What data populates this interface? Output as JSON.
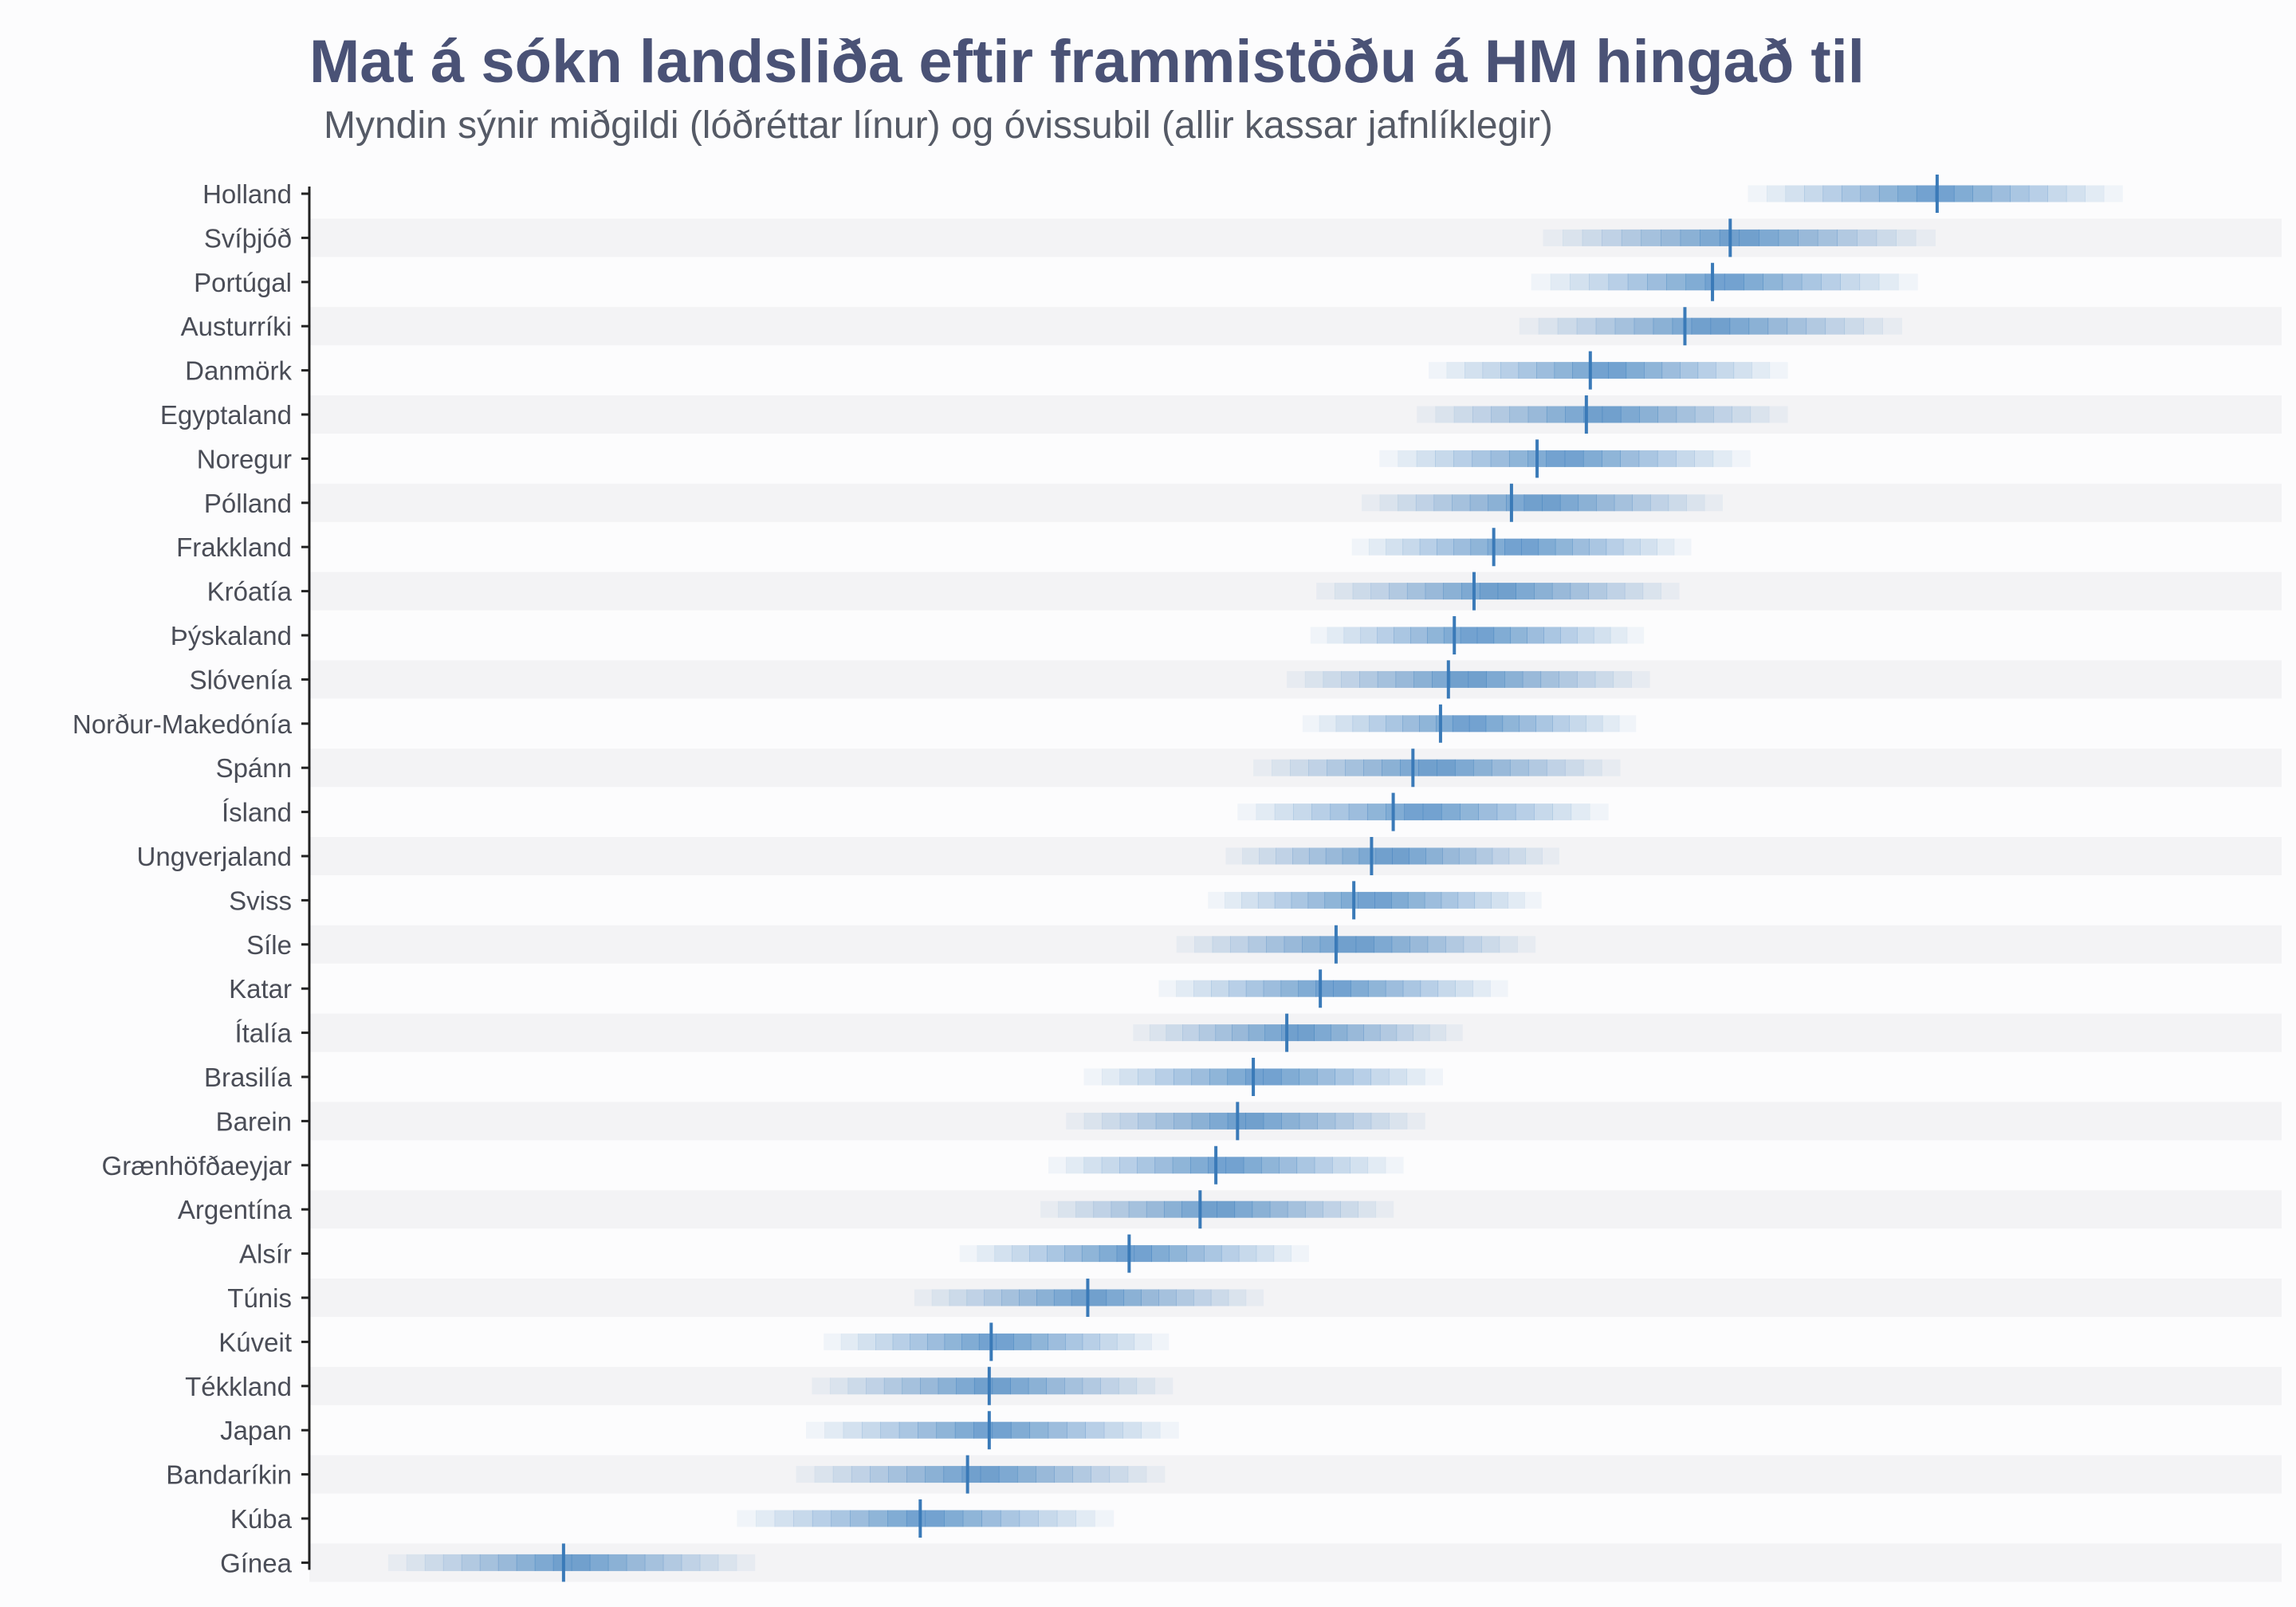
{
  "title": "Mat á sókn landsliða eftir frammistöðu á HM hingað til",
  "subtitle": "Myndin sýnir miðgildi (lóðréttar línur) og óvissubil (allir kassar jafnlíklegir)",
  "colors": {
    "band": "#3c7ebd",
    "median": "#3a7ab8",
    "stripe": "#f3f3f5",
    "axis": "#222222"
  },
  "chart_data": {
    "type": "interval-strip",
    "title": "Mat á sókn landsliða eftir frammistöðu á HM hingað til",
    "subtitle": "Myndin sýnir miðgildi (lóðréttar línur) og óvissubil (allir kassar jafnlíklegir)",
    "xlabel": "",
    "ylabel": "",
    "x_axis_ticks": "none",
    "xlim": [
      0,
      100
    ],
    "grid": false,
    "legend": "none",
    "categories": [
      "Holland",
      "Svíþjóð",
      "Portúgal",
      "Austurríki",
      "Danmörk",
      "Egyptaland",
      "Noregur",
      "Pólland",
      "Frakkland",
      "Króatía",
      "Þýskaland",
      "Slóvenía",
      "Norður-Makedónía",
      "Spánn",
      "Ísland",
      "Ungverjaland",
      "Sviss",
      "Síle",
      "Katar",
      "Ítalía",
      "Brasilía",
      "Barein",
      "Grænhöfðaeyjar",
      "Argentína",
      "Alsír",
      "Túnis",
      "Kúveit",
      "Tékkland",
      "Japan",
      "Bandaríkin",
      "Kúba",
      "Gínea"
    ],
    "series": [
      {
        "median": 82.6,
        "interval": [
          73.0,
          92.0
        ]
      },
      {
        "median": 72.1,
        "interval": [
          62.6,
          82.5
        ]
      },
      {
        "median": 71.2,
        "interval": [
          62.0,
          81.6
        ]
      },
      {
        "median": 69.8,
        "interval": [
          61.4,
          80.8
        ]
      },
      {
        "median": 65.0,
        "interval": [
          56.8,
          75.0
        ]
      },
      {
        "median": 64.8,
        "interval": [
          56.2,
          75.0
        ]
      },
      {
        "median": 62.3,
        "interval": [
          54.3,
          73.1
        ]
      },
      {
        "median": 61.0,
        "interval": [
          53.4,
          71.7
        ]
      },
      {
        "median": 60.1,
        "interval": [
          52.9,
          70.1
        ]
      },
      {
        "median": 59.1,
        "interval": [
          51.1,
          69.5
        ]
      },
      {
        "median": 58.1,
        "interval": [
          50.8,
          67.7
        ]
      },
      {
        "median": 57.8,
        "interval": [
          49.6,
          68.0
        ]
      },
      {
        "median": 57.4,
        "interval": [
          50.4,
          67.3
        ]
      },
      {
        "median": 56.0,
        "interval": [
          47.9,
          66.5
        ]
      },
      {
        "median": 55.0,
        "interval": [
          47.1,
          65.9
        ]
      },
      {
        "median": 53.9,
        "interval": [
          46.5,
          63.4
        ]
      },
      {
        "median": 53.0,
        "interval": [
          45.6,
          62.5
        ]
      },
      {
        "median": 52.1,
        "interval": [
          44.0,
          62.2
        ]
      },
      {
        "median": 51.3,
        "interval": [
          43.1,
          60.8
        ]
      },
      {
        "median": 49.6,
        "interval": [
          41.8,
          58.5
        ]
      },
      {
        "median": 47.9,
        "interval": [
          39.3,
          57.5
        ]
      },
      {
        "median": 47.1,
        "interval": [
          38.4,
          56.6
        ]
      },
      {
        "median": 46.0,
        "interval": [
          37.5,
          55.5
        ]
      },
      {
        "median": 45.2,
        "interval": [
          37.1,
          55.0
        ]
      },
      {
        "median": 41.6,
        "interval": [
          33.0,
          50.7
        ]
      },
      {
        "median": 39.5,
        "interval": [
          30.7,
          48.4
        ]
      },
      {
        "median": 34.6,
        "interval": [
          26.1,
          43.6
        ]
      },
      {
        "median": 34.5,
        "interval": [
          25.5,
          43.8
        ]
      },
      {
        "median": 34.5,
        "interval": [
          25.2,
          44.1
        ]
      },
      {
        "median": 33.4,
        "interval": [
          24.7,
          43.4
        ]
      },
      {
        "median": 31.0,
        "interval": [
          21.7,
          40.8
        ]
      },
      {
        "median": 12.9,
        "interval": [
          4.0,
          22.6
        ]
      }
    ]
  }
}
